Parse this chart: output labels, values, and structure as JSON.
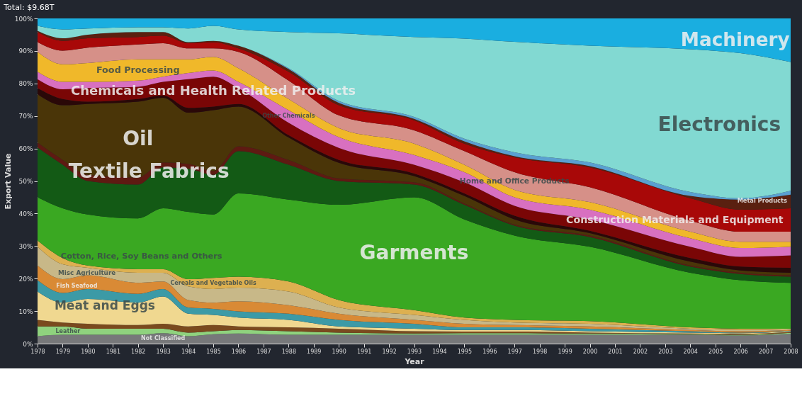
{
  "chart_data": {
    "type": "area",
    "stacked": true,
    "title": "Total: $9.68T",
    "xlabel": "Year",
    "ylabel": "Export Value",
    "x": [
      1978,
      1979,
      1980,
      1982,
      1983,
      1984,
      1985,
      1986,
      1988,
      1990,
      1993,
      1995,
      1997,
      2000,
      2004,
      2006,
      2008
    ],
    "xlim": [
      1978,
      2008
    ],
    "xticks": [
      1978,
      1979,
      1980,
      1981,
      1982,
      1983,
      1984,
      1985,
      1986,
      1987,
      1988,
      1989,
      1990,
      1991,
      1992,
      1993,
      1994,
      1995,
      1996,
      1997,
      1998,
      1999,
      2000,
      2001,
      2002,
      2003,
      2004,
      2005,
      2006,
      2007,
      2008
    ],
    "ylim": [
      0,
      100
    ],
    "yticks": [
      {
        "value": 0,
        "label": "0%"
      },
      {
        "value": 10,
        "label": "10%"
      },
      {
        "value": 20,
        "label": "20%"
      },
      {
        "value": 30,
        "label": "30%"
      },
      {
        "value": 40,
        "label": "40%"
      },
      {
        "value": 50,
        "label": "50%"
      },
      {
        "value": 60,
        "label": "60%"
      },
      {
        "value": 70,
        "label": "70%"
      },
      {
        "value": 80,
        "label": "80%"
      },
      {
        "value": 90,
        "label": "90%"
      },
      {
        "value": 100,
        "label": "100%"
      }
    ],
    "grid": false,
    "legend": false,
    "series": [
      {
        "name": "Not Classified",
        "color": "#77787a",
        "values": [
          2.3,
          2.7,
          2.7,
          2.7,
          3.2,
          2.3,
          2.9,
          3.1,
          2.7,
          2.7,
          2.7,
          2.7,
          2.7,
          2.7,
          2.7,
          2.5,
          3.0
        ]
      },
      {
        "name": "Leather",
        "color": "#8fd27e",
        "values": [
          3.0,
          2.6,
          1.9,
          1.9,
          1.4,
          1.1,
          0.9,
          1.1,
          1.1,
          0.7,
          0.4,
          0.5,
          0.5,
          0.4,
          0.2,
          0.2,
          0.3
        ]
      },
      {
        "color": "#7a4a1e",
        "values": [
          2.0,
          1.2,
          1.5,
          1.1,
          1.5,
          1.9,
          1.9,
          1.1,
          1.2,
          1.2,
          0.7,
          0.5,
          0.5,
          0.3,
          0.2,
          0.3,
          0.3
        ]
      },
      {
        "name": "Meat and Eggs",
        "color": "#f0d890",
        "values": [
          8.7,
          6.1,
          7.6,
          6.9,
          8.4,
          3.9,
          3.1,
          2.7,
          2.3,
          0.7,
          0.8,
          0.5,
          0.5,
          0.4,
          0.3,
          0.2,
          0.2
        ]
      },
      {
        "name": "Fish Seafood",
        "color": "#3c9aa6",
        "values": [
          3.5,
          3.0,
          3.1,
          2.7,
          2.3,
          1.9,
          1.9,
          1.9,
          1.9,
          2.0,
          1.5,
          0.8,
          0.8,
          0.8,
          0.4,
          0.2,
          0.2
        ]
      },
      {
        "name": "Misc Agriculture",
        "color": "#d98a35",
        "values": [
          4.5,
          4.2,
          4.2,
          3.4,
          2.3,
          2.3,
          1.9,
          3.1,
          2.6,
          1.9,
          1.2,
          1.1,
          0.7,
          0.7,
          0.4,
          0.4,
          0.2
        ]
      },
      {
        "name": "Cotton, Rice, Soy Beans and Others",
        "color": "#c8b888",
        "values": [
          5.8,
          4.6,
          2.3,
          3.1,
          2.7,
          4.2,
          4.2,
          4.2,
          4.2,
          1.9,
          1.5,
          1.2,
          0.8,
          0.8,
          0.4,
          0.4,
          0.2
        ]
      },
      {
        "name": "Cereals and Vegetable Oils",
        "color": "#ddb050",
        "values": [
          1.9,
          1.9,
          0.7,
          1.1,
          1.1,
          2.2,
          3.4,
          3.4,
          3.1,
          2.3,
          1.5,
          0.7,
          0.8,
          0.8,
          0.4,
          0.4,
          0.2
        ]
      },
      {
        "name": "Garments",
        "color": "#3aa822",
        "values": [
          13.3,
          15.3,
          15.7,
          15.6,
          18.7,
          20.7,
          19.5,
          25.6,
          25.2,
          29.3,
          34.7,
          30.2,
          25.9,
          22.9,
          16.8,
          14.9,
          14.1
        ]
      },
      {
        "name": "Textile Fabrics",
        "color": "#135a15",
        "values": [
          15.3,
          13.4,
          10.3,
          10.4,
          12.6,
          13.3,
          12.2,
          13.0,
          10.7,
          7.3,
          3.9,
          4.5,
          3.1,
          3.0,
          1.9,
          1.9,
          1.9
        ]
      },
      {
        "color": "#5e1a12",
        "values": [
          1.5,
          1.5,
          1.9,
          2.2,
          1.5,
          1.5,
          1.2,
          1.5,
          1.5,
          0.8,
          0.7,
          0.4,
          0.3,
          0.4,
          0.3,
          0.4,
          0.4
        ]
      },
      {
        "name": "Oil",
        "color": "#4a3508",
        "values": [
          14.9,
          16.8,
          21.8,
          23.3,
          19.9,
          15.7,
          18.7,
          12.2,
          6.9,
          4.8,
          1.9,
          2.3,
          1.6,
          0.8,
          1.2,
          0.7,
          0.8
        ]
      },
      {
        "color": "#2a0808",
        "values": [
          1.9,
          1.9,
          0.7,
          0.8,
          0.7,
          1.5,
          1.1,
          0.8,
          0.7,
          0.9,
          0.8,
          0.8,
          1.1,
          0.7,
          1.1,
          1.2,
          1.5
        ]
      },
      {
        "name": "Chemicals and Health Related Products",
        "color": "#7a0606",
        "values": [
          2.7,
          3.0,
          4.2,
          3.8,
          4.2,
          8.8,
          9.2,
          4.9,
          3.8,
          3.7,
          2.7,
          3.4,
          3.1,
          3.5,
          3.5,
          3.0,
          3.8
        ]
      },
      {
        "name": "Other Chemicals",
        "color": "#d870c0",
        "values": [
          2.3,
          2.3,
          1.9,
          1.9,
          1.6,
          1.9,
          1.9,
          1.9,
          3.9,
          3.3,
          3.0,
          3.1,
          2.6,
          3.0,
          2.6,
          2.7,
          2.7
        ]
      },
      {
        "name": "Food Processing",
        "color": "#f0b82a",
        "values": [
          6.1,
          5.4,
          5.8,
          6.5,
          5.3,
          4.2,
          4.2,
          4.2,
          3.4,
          2.8,
          3.5,
          2.3,
          2.3,
          2.3,
          2.0,
          1.9,
          1.5
        ]
      },
      {
        "name": "Home and Office Products",
        "color": "#d69088",
        "values": [
          3.0,
          4.2,
          4.7,
          4.6,
          5.0,
          3.4,
          2.6,
          5.0,
          5.7,
          3.9,
          4.1,
          4.2,
          5.4,
          4.6,
          3.4,
          3.1,
          3.1
        ]
      },
      {
        "name": "Construction Materials and Equipment",
        "color": "#a80808",
        "values": [
          3.1,
          3.0,
          2.9,
          2.3,
          2.3,
          1.6,
          1.9,
          1.1,
          2.7,
          3.1,
          3.1,
          2.3,
          4.6,
          6.1,
          6.9,
          6.8,
          7.2
        ]
      },
      {
        "name": "Metal Products",
        "color": "#5a2010",
        "values": [
          0.4,
          0.8,
          1.1,
          1.5,
          1.1,
          0.3,
          0.4,
          0.8,
          0.8,
          0.7,
          0.4,
          0.7,
          0.3,
          0.4,
          0.7,
          3.1,
          4.2
        ]
      },
      {
        "color": "#5aa0d0",
        "values": [
          0,
          0,
          0,
          0,
          0,
          0,
          0,
          0,
          0.3,
          0.6,
          0.6,
          0.8,
          1.2,
          1.1,
          1.2,
          0.4,
          1.2
        ]
      },
      {
        "name": "Electronics",
        "color": "#82d9d2",
        "values": [
          1.5,
          2.7,
          1.9,
          1.5,
          1.5,
          4.2,
          4.6,
          5.0,
          11.1,
          20.8,
          24.6,
          30.8,
          34.0,
          35.9,
          43.9,
          44.6,
          39.6
        ]
      },
      {
        "name": "Machinery",
        "color": "#1aaee0",
        "values": [
          2.3,
          3.4,
          3.1,
          2.7,
          2.7,
          3.1,
          2.3,
          3.4,
          4.2,
          4.6,
          5.7,
          6.2,
          7.2,
          8.4,
          9.5,
          10.7,
          13.4
        ]
      }
    ]
  }
}
